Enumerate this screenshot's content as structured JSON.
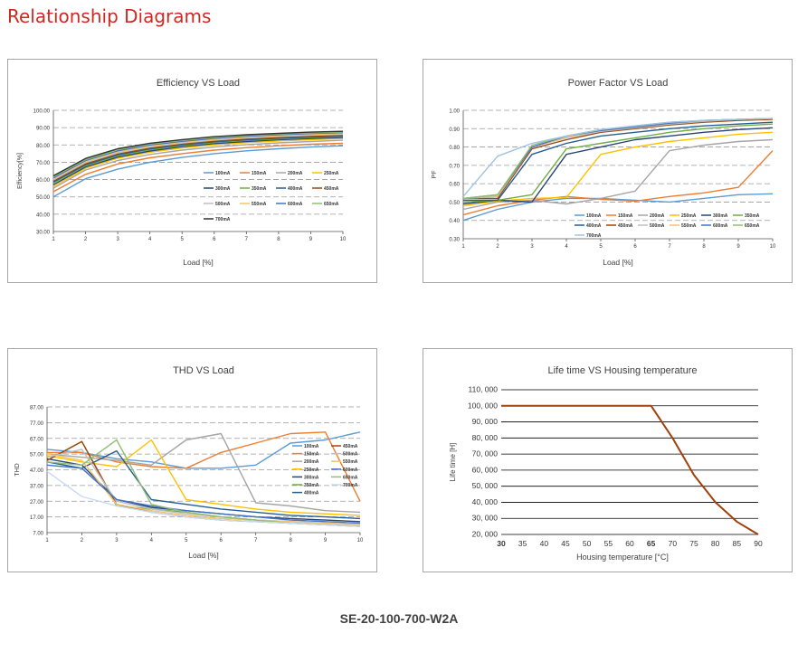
{
  "page_title": "Relationship Diagrams",
  "model": "SE-20-100-700-W2A",
  "chart_data": [
    {
      "type": "line",
      "title": "Efficiency VS Load",
      "xlabel": "Load [%]",
      "ylabel": "Efficiency[%]",
      "x": [
        1,
        2,
        3,
        4,
        5,
        6,
        7,
        8,
        9,
        10
      ],
      "xticks": [
        "1",
        "2",
        "3",
        "4",
        "5",
        "6",
        "7",
        "8",
        "9",
        "10"
      ],
      "ylim": [
        30,
        100
      ],
      "yticks": [
        "30.00",
        "40.00",
        "50.00",
        "60.00",
        "70.00",
        "80.00",
        "90.00",
        "100.00"
      ],
      "grid": true,
      "legend_position": "inside-right",
      "series": [
        {
          "name": "100mA",
          "color": "#5b9bd5",
          "values": [
            50,
            60.5,
            66,
            70,
            72.8,
            75,
            76.6,
            77.8,
            78.8,
            79.5
          ]
        },
        {
          "name": "150mA",
          "color": "#ed7d31",
          "values": [
            53,
            63,
            69,
            72.6,
            75,
            77,
            78.4,
            79.5,
            80.4,
            81
          ]
        },
        {
          "name": "200mA",
          "color": "#a5a5a5",
          "values": [
            55,
            65.5,
            71,
            74.5,
            77,
            78.8,
            80.2,
            81.2,
            82,
            82.7
          ]
        },
        {
          "name": "250mA",
          "color": "#ffc000",
          "values": [
            56,
            66.5,
            72.3,
            75.8,
            78.2,
            80,
            81.3,
            82.3,
            83.1,
            83.7
          ]
        },
        {
          "name": "300mA",
          "color": "#264478",
          "values": [
            57,
            67.3,
            73,
            76.5,
            79,
            80.8,
            82,
            83,
            83.7,
            84.3
          ]
        },
        {
          "name": "350mA",
          "color": "#70ad47",
          "values": [
            58,
            68,
            73.8,
            77.2,
            79.6,
            81.4,
            82.6,
            83.5,
            84.2,
            84.8
          ]
        },
        {
          "name": "400mA",
          "color": "#255e91",
          "values": [
            58.6,
            68.6,
            74.3,
            77.8,
            80.1,
            81.8,
            83,
            83.9,
            84.6,
            85.2
          ]
        },
        {
          "name": "450mA",
          "color": "#9e480e",
          "values": [
            59.2,
            69.2,
            74.9,
            78.3,
            80.6,
            82.3,
            83.5,
            84.4,
            85.1,
            85.6
          ]
        },
        {
          "name": "500mA",
          "color": "#bfbfbf",
          "values": [
            59.8,
            69.8,
            75.4,
            78.8,
            81.1,
            82.8,
            84,
            84.9,
            85.6,
            86.1
          ]
        },
        {
          "name": "550mA",
          "color": "#f2c46d",
          "values": [
            60.4,
            70.4,
            76,
            79.4,
            81.6,
            83.3,
            84.5,
            85.4,
            86.1,
            86.6
          ]
        },
        {
          "name": "600mA",
          "color": "#4472c4",
          "values": [
            61,
            71,
            76.6,
            80,
            82.1,
            83.8,
            85,
            85.9,
            86.6,
            87.1
          ]
        },
        {
          "name": "650mA",
          "color": "#8fbf72",
          "values": [
            61.6,
            71.6,
            77.2,
            80.5,
            82.6,
            84.3,
            85.5,
            86.3,
            87,
            87.5
          ]
        },
        {
          "name": "700mA",
          "color": "#333333",
          "values": [
            62.2,
            72.2,
            77.8,
            81,
            83.1,
            84.8,
            85.9,
            86.7,
            87.4,
            87.9
          ]
        }
      ]
    },
    {
      "type": "line",
      "title": "Power Factor VS Load",
      "xlabel": "Load [%]",
      "ylabel": "PF",
      "x": [
        1,
        2,
        3,
        4,
        5,
        6,
        7,
        8,
        9,
        10
      ],
      "xticks": [
        "1",
        "2",
        "3",
        "4",
        "5",
        "6",
        "7",
        "8",
        "9",
        "10"
      ],
      "ylim": [
        0.3,
        1.0
      ],
      "yticks": [
        "0.30",
        "0.40",
        "0.50",
        "0.60",
        "0.70",
        "0.80",
        "0.90",
        "1.00"
      ],
      "grid": true,
      "legend_position": "bottom-inside",
      "series": [
        {
          "name": "100mA",
          "color": "#5b9bd5",
          "values": [
            0.4,
            0.46,
            0.5,
            0.52,
            0.52,
            0.51,
            0.5,
            0.52,
            0.54,
            0.545
          ]
        },
        {
          "name": "150mA",
          "color": "#ed7d31",
          "values": [
            0.43,
            0.48,
            0.51,
            0.53,
            0.515,
            0.505,
            0.53,
            0.55,
            0.58,
            0.78
          ]
        },
        {
          "name": "200mA",
          "color": "#a5a5a5",
          "values": [
            0.46,
            0.5,
            0.51,
            0.49,
            0.52,
            0.56,
            0.78,
            0.81,
            0.83,
            0.84
          ]
        },
        {
          "name": "250mA",
          "color": "#ffc000",
          "values": [
            0.48,
            0.505,
            0.52,
            0.525,
            0.76,
            0.8,
            0.83,
            0.85,
            0.87,
            0.88
          ]
        },
        {
          "name": "300mA",
          "color": "#264478",
          "values": [
            0.49,
            0.51,
            0.5,
            0.76,
            0.8,
            0.84,
            0.86,
            0.88,
            0.895,
            0.905
          ]
        },
        {
          "name": "350mA",
          "color": "#70ad47",
          "values": [
            0.5,
            0.51,
            0.54,
            0.79,
            0.82,
            0.85,
            0.88,
            0.9,
            0.915,
            0.925
          ]
        },
        {
          "name": "400mA",
          "color": "#255e91",
          "values": [
            0.51,
            0.51,
            0.76,
            0.82,
            0.86,
            0.88,
            0.9,
            0.915,
            0.925,
            0.935
          ]
        },
        {
          "name": "450mA",
          "color": "#9e480e",
          "values": [
            0.52,
            0.52,
            0.79,
            0.84,
            0.88,
            0.9,
            0.92,
            0.935,
            0.945,
            0.95
          ]
        },
        {
          "name": "500mA",
          "color": "#bfbfbf",
          "values": [
            0.52,
            0.53,
            0.8,
            0.85,
            0.885,
            0.905,
            0.925,
            0.94,
            0.95,
            0.955
          ]
        },
        {
          "name": "550mA",
          "color": "#f2c46d",
          "values": [
            0.52,
            0.535,
            0.8,
            0.855,
            0.89,
            0.91,
            0.93,
            0.945,
            0.95,
            0.955
          ]
        },
        {
          "name": "600mA",
          "color": "#4472c4",
          "values": [
            0.52,
            0.54,
            0.8,
            0.86,
            0.89,
            0.91,
            0.93,
            0.945,
            0.95,
            0.955
          ]
        },
        {
          "name": "650mA",
          "color": "#8fbf72",
          "values": [
            0.52,
            0.54,
            0.81,
            0.86,
            0.895,
            0.915,
            0.935,
            0.945,
            0.95,
            0.955
          ]
        },
        {
          "name": "700mA",
          "color": "#9dc3e6",
          "values": [
            0.53,
            0.75,
            0.82,
            0.86,
            0.895,
            0.915,
            0.935,
            0.945,
            0.95,
            0.955
          ]
        }
      ]
    },
    {
      "type": "line",
      "title": "THD VS Load",
      "xlabel": "Load [%]",
      "ylabel": "THD",
      "x": [
        1,
        2,
        3,
        4,
        5,
        6,
        7,
        8,
        9,
        10
      ],
      "xticks": [
        "1",
        "2",
        "3",
        "4",
        "5",
        "6",
        "7",
        "8",
        "9",
        "10"
      ],
      "ylim": [
        7,
        87
      ],
      "yticks": [
        "7.00",
        "17.00",
        "27.00",
        "37.00",
        "47.00",
        "57.00",
        "67.00",
        "77.00",
        "87.00"
      ],
      "grid": true,
      "legend_position": "right-inside",
      "series": [
        {
          "name": "100mA",
          "color": "#5b9bd5",
          "values": [
            60,
            58,
            54,
            52,
            48,
            48,
            50,
            64,
            66,
            71
          ]
        },
        {
          "name": "150mA",
          "color": "#ed7d31",
          "values": [
            58,
            58,
            52,
            49,
            48,
            58,
            64,
            70,
            71,
            27
          ]
        },
        {
          "name": "200mA",
          "color": "#a5a5a5",
          "values": [
            57,
            55,
            53,
            50,
            66,
            70,
            26,
            24,
            21,
            20
          ]
        },
        {
          "name": "250mA",
          "color": "#ffc000",
          "values": [
            56,
            52,
            49,
            66,
            28,
            25,
            22,
            20,
            19,
            18
          ]
        },
        {
          "name": "300mA",
          "color": "#264478",
          "values": [
            54,
            50,
            28,
            23,
            21,
            19,
            17,
            16,
            15,
            14
          ]
        },
        {
          "name": "350mA",
          "color": "#70ad47",
          "values": [
            53,
            65,
            24,
            22,
            20,
            17,
            15,
            14,
            13,
            12
          ]
        },
        {
          "name": "400mA",
          "color": "#255e91",
          "values": [
            52,
            48,
            59,
            28,
            25,
            22,
            20,
            18,
            17,
            16
          ]
        },
        {
          "name": "450mA",
          "color": "#9e480e",
          "values": [
            53,
            65,
            25,
            20,
            17,
            15,
            14,
            13,
            12,
            11
          ]
        },
        {
          "name": "500mA",
          "color": "#bfbfbf",
          "values": [
            55,
            60,
            27,
            22,
            19,
            17,
            15,
            14,
            13,
            12
          ]
        },
        {
          "name": "550mA",
          "color": "#f2c46d",
          "values": [
            57,
            53,
            25,
            21,
            18,
            16,
            15,
            14,
            13,
            12
          ]
        },
        {
          "name": "600mA",
          "color": "#4472c4",
          "values": [
            50,
            48,
            28,
            24,
            21,
            19,
            17,
            15,
            14,
            13
          ]
        },
        {
          "name": "650mA",
          "color": "#8fbf72",
          "values": [
            52,
            50,
            66,
            25,
            20,
            17,
            15,
            13,
            12,
            11
          ]
        },
        {
          "name": "700mA",
          "color": "#c9daf8",
          "values": [
            46,
            30,
            24,
            20,
            17,
            15,
            14,
            13,
            12,
            11
          ]
        }
      ]
    },
    {
      "type": "line",
      "title": "Life time VS Housing temperature",
      "xlabel": "Housing temperature [°C]",
      "ylabel": "Life time [H]",
      "x": [
        30,
        35,
        40,
        45,
        50,
        55,
        60,
        65,
        70,
        75,
        80,
        85,
        90
      ],
      "xticks": [
        "30",
        "35",
        "40",
        "45",
        "50",
        "55",
        "60",
        "65",
        "70",
        "75",
        "80",
        "85",
        "90"
      ],
      "xticks_bold": [
        "30",
        "65"
      ],
      "ylim": [
        20000,
        110000
      ],
      "yticks": [
        "20, 000",
        "30, 000",
        "40, 000",
        "50, 000",
        "60, 000",
        "70, 000",
        "80, 000",
        "90, 000",
        "100, 000",
        "110, 000"
      ],
      "grid": true,
      "series": [
        {
          "color": "#a0400b",
          "values": [
            100000,
            100000,
            100000,
            100000,
            100000,
            100000,
            100000,
            100000,
            80000,
            57000,
            40000,
            28000,
            20000
          ]
        }
      ]
    }
  ]
}
